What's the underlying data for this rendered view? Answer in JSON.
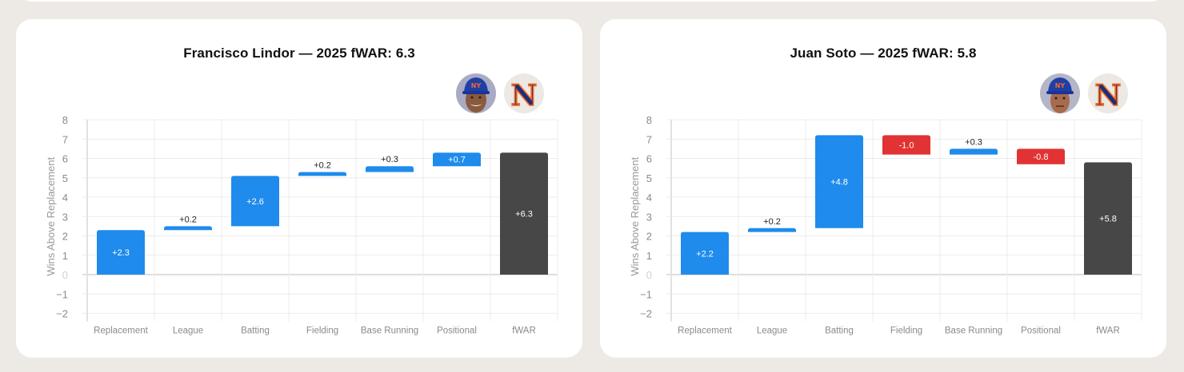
{
  "colors": {
    "positive": "#1f8bec",
    "negative": "#e13333",
    "total": "#474747",
    "grid": "#ececec",
    "zero_line": "#dedede",
    "tick_text": "#8a8a8a",
    "background": "#edeae5"
  },
  "charts": [
    {
      "title": "Francisco Lindor — 2025 fWAR: 6.3",
      "player_avatar": "player-headshot-lindor",
      "team_logo": "mets-ny-logo",
      "ylabel": "Wins Above Replacement"
    },
    {
      "title": "Juan Soto — 2025 fWAR: 5.8",
      "player_avatar": "player-headshot-soto",
      "team_logo": "mets-ny-logo",
      "ylabel": "Wins Above Replacement"
    }
  ],
  "chart_data": [
    {
      "type": "bar",
      "subtype": "waterfall",
      "title": "Francisco Lindor — 2025 fWAR: 6.3",
      "xlabel": "",
      "ylabel": "Wins Above Replacement",
      "ylim": [
        -2,
        8
      ],
      "yticks": [
        8,
        7,
        6,
        5,
        4,
        3,
        2,
        1,
        0,
        -1,
        -2
      ],
      "grid": true,
      "categories": [
        "Replacement",
        "League",
        "Batting",
        "Fielding",
        "Base Running",
        "Positional",
        "fWAR"
      ],
      "values": [
        2.3,
        0.2,
        2.6,
        0.2,
        0.3,
        0.7,
        6.3
      ],
      "labels": [
        "+2.3",
        "+0.2",
        "+2.6",
        "+0.2",
        "+0.3",
        "+0.7",
        "+6.3"
      ],
      "kinds": [
        "pos",
        "pos",
        "pos",
        "pos",
        "pos",
        "pos",
        "total"
      ]
    },
    {
      "type": "bar",
      "subtype": "waterfall",
      "title": "Juan Soto — 2025 fWAR: 5.8",
      "xlabel": "",
      "ylabel": "Wins Above Replacement",
      "ylim": [
        -2,
        8
      ],
      "yticks": [
        8,
        7,
        6,
        5,
        4,
        3,
        2,
        1,
        0,
        -1,
        -2
      ],
      "grid": true,
      "categories": [
        "Replacement",
        "League",
        "Batting",
        "Fielding",
        "Base Running",
        "Positional",
        "fWAR"
      ],
      "values": [
        2.2,
        0.2,
        4.8,
        -1.0,
        0.3,
        -0.8,
        5.8
      ],
      "labels": [
        "+2.2",
        "+0.2",
        "+4.8",
        "-1.0",
        "+0.3",
        "-0.8",
        "+5.8"
      ],
      "kinds": [
        "pos",
        "pos",
        "pos",
        "neg",
        "pos",
        "neg",
        "total"
      ]
    }
  ]
}
